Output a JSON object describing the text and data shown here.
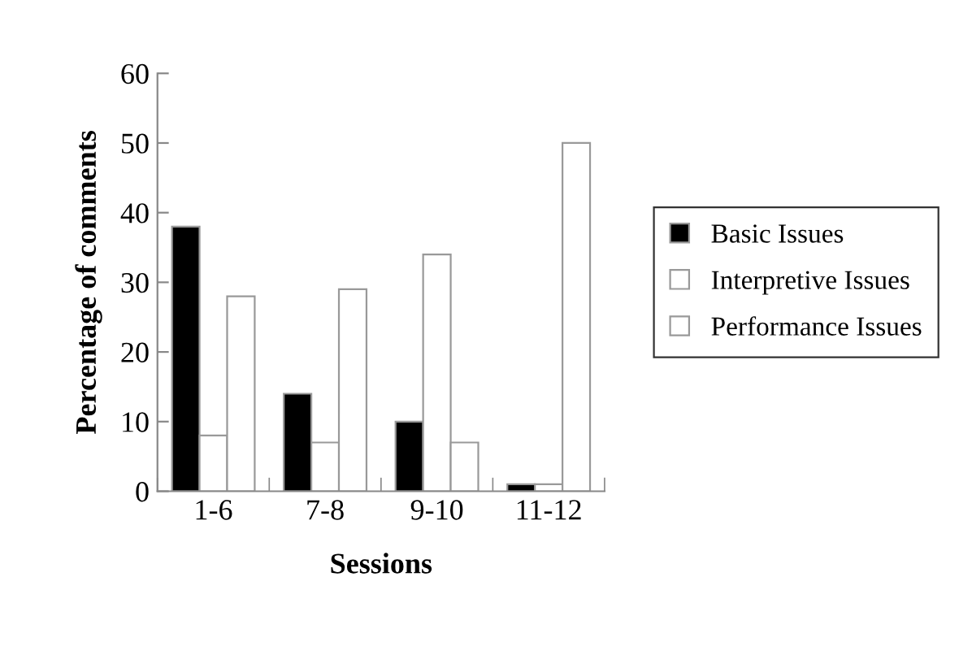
{
  "chart_data": {
    "type": "bar",
    "xlabel": "Sessions",
    "ylabel": "Percentage of comments",
    "categories": [
      "1-6",
      "7-8",
      "9-10",
      "11-12"
    ],
    "series": [
      {
        "name": "Basic Issues",
        "color": "#000000",
        "values": [
          38,
          14,
          10,
          1
        ]
      },
      {
        "name": "Interpretive Issues",
        "color": "#ffffff",
        "values": [
          8,
          7,
          34,
          1
        ]
      },
      {
        "name": "Performance Issues",
        "color": "#ffffff",
        "values": [
          28,
          29,
          7,
          50
        ]
      }
    ],
    "ylim": [
      0,
      60
    ],
    "yticks": [
      0,
      10,
      20,
      30,
      40,
      50,
      60
    ],
    "grid": false,
    "legend": "right"
  }
}
